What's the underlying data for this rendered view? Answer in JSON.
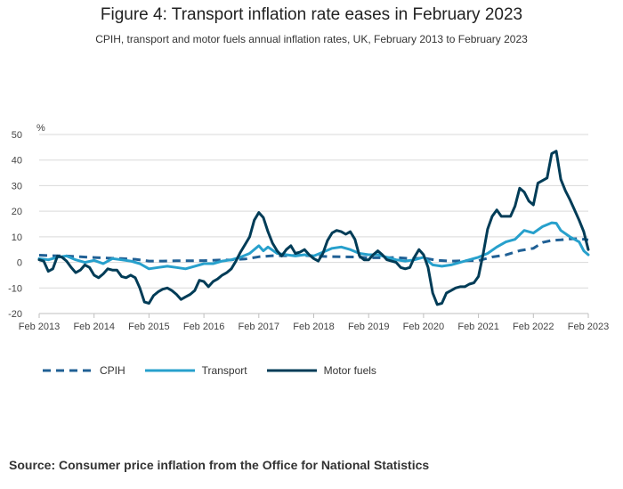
{
  "title": "Figure 4: Transport inflation rate eases in February 2023",
  "subtitle": "CPIH, transport and motor fuels annual inflation rates, UK, February 2013 to February 2023",
  "source": "Source: Consumer price inflation from the Office for National Statistics",
  "colors": {
    "cpih": "#206095",
    "transport": "#27a0cc",
    "motor_fuels": "#003c57",
    "grid": "#d9d9d9",
    "axis": "#bfbfbf"
  },
  "chart_data": {
    "type": "line",
    "ylabel": "%",
    "ylim": [
      -20,
      50
    ],
    "yticks": [
      50,
      40,
      30,
      20,
      10,
      0,
      -10,
      -20
    ],
    "xlim": [
      0,
      120
    ],
    "xticks": [
      {
        "x": 0,
        "label": "Feb 2013"
      },
      {
        "x": 12,
        "label": "Feb 2014"
      },
      {
        "x": 24,
        "label": "Feb 2015"
      },
      {
        "x": 36,
        "label": "Feb 2016"
      },
      {
        "x": 48,
        "label": "Feb 2017"
      },
      {
        "x": 60,
        "label": "Feb 2018"
      },
      {
        "x": 72,
        "label": "Feb 2019"
      },
      {
        "x": 84,
        "label": "Feb 2020"
      },
      {
        "x": 96,
        "label": "Feb 2021"
      },
      {
        "x": 108,
        "label": "Feb 2022"
      },
      {
        "x": 120,
        "label": "Feb 2023"
      }
    ],
    "series": [
      {
        "name": "CPIH",
        "key": "cpih",
        "style": "dashed",
        "values": [
          [
            0,
            2.8
          ],
          [
            3,
            2.6
          ],
          [
            6,
            2.5
          ],
          [
            9,
            2.2
          ],
          [
            12,
            1.9
          ],
          [
            15,
            1.7
          ],
          [
            18,
            1.5
          ],
          [
            21,
            1.2
          ],
          [
            24,
            0.5
          ],
          [
            27,
            0.5
          ],
          [
            30,
            0.6
          ],
          [
            33,
            0.6
          ],
          [
            36,
            0.7
          ],
          [
            39,
            0.9
          ],
          [
            42,
            1.0
          ],
          [
            45,
            1.3
          ],
          [
            48,
            2.2
          ],
          [
            51,
            2.6
          ],
          [
            54,
            2.6
          ],
          [
            57,
            2.8
          ],
          [
            60,
            2.5
          ],
          [
            63,
            2.3
          ],
          [
            66,
            2.2
          ],
          [
            69,
            2.1
          ],
          [
            72,
            1.8
          ],
          [
            75,
            1.8
          ],
          [
            78,
            1.9
          ],
          [
            81,
            1.5
          ],
          [
            84,
            1.7
          ],
          [
            87,
            0.8
          ],
          [
            90,
            0.5
          ],
          [
            93,
            0.6
          ],
          [
            96,
            0.7
          ],
          [
            99,
            2.1
          ],
          [
            102,
            2.9
          ],
          [
            105,
            4.6
          ],
          [
            108,
            5.5
          ],
          [
            110,
            7.8
          ],
          [
            112,
            8.6
          ],
          [
            114,
            8.8
          ],
          [
            116,
            9.2
          ],
          [
            118,
            9.3
          ],
          [
            120,
            8.8
          ]
        ]
      },
      {
        "name": "Transport",
        "key": "transport",
        "style": "solid",
        "values": [
          [
            0,
            1.5
          ],
          [
            2,
            1.0
          ],
          [
            4,
            2.0
          ],
          [
            6,
            2.5
          ],
          [
            8,
            1.0
          ],
          [
            10,
            0.0
          ],
          [
            12,
            0.8
          ],
          [
            14,
            -0.5
          ],
          [
            16,
            1.5
          ],
          [
            18,
            1.0
          ],
          [
            20,
            0.5
          ],
          [
            22,
            -0.5
          ],
          [
            24,
            -2.5
          ],
          [
            26,
            -2.0
          ],
          [
            28,
            -1.5
          ],
          [
            30,
            -2.0
          ],
          [
            32,
            -2.5
          ],
          [
            34,
            -1.5
          ],
          [
            36,
            -0.5
          ],
          [
            38,
            -0.5
          ],
          [
            40,
            0.5
          ],
          [
            42,
            1.0
          ],
          [
            44,
            2.0
          ],
          [
            46,
            3.5
          ],
          [
            48,
            6.5
          ],
          [
            49,
            4.5
          ],
          [
            50,
            6.0
          ],
          [
            52,
            3.5
          ],
          [
            54,
            3.0
          ],
          [
            56,
            2.5
          ],
          [
            58,
            3.0
          ],
          [
            60,
            2.5
          ],
          [
            62,
            4.0
          ],
          [
            64,
            5.5
          ],
          [
            66,
            6.0
          ],
          [
            68,
            5.0
          ],
          [
            70,
            3.5
          ],
          [
            72,
            3.0
          ],
          [
            74,
            3.0
          ],
          [
            76,
            2.0
          ],
          [
            78,
            1.0
          ],
          [
            80,
            0.5
          ],
          [
            82,
            1.0
          ],
          [
            84,
            2.0
          ],
          [
            86,
            -1.0
          ],
          [
            88,
            -1.5
          ],
          [
            90,
            -1.0
          ],
          [
            92,
            0.0
          ],
          [
            94,
            1.0
          ],
          [
            96,
            2.0
          ],
          [
            98,
            3.5
          ],
          [
            100,
            6.0
          ],
          [
            102,
            8.0
          ],
          [
            104,
            9.0
          ],
          [
            106,
            12.5
          ],
          [
            108,
            11.5
          ],
          [
            110,
            14.0
          ],
          [
            112,
            15.5
          ],
          [
            113,
            15.3
          ],
          [
            114,
            12.5
          ],
          [
            116,
            10.0
          ],
          [
            118,
            8.0
          ],
          [
            119,
            4.5
          ],
          [
            120,
            3.0
          ]
        ]
      },
      {
        "name": "Motor fuels",
        "key": "motor_fuels",
        "style": "solid",
        "values": [
          [
            0,
            1.0
          ],
          [
            1,
            0.5
          ],
          [
            2,
            -3.5
          ],
          [
            3,
            -2.5
          ],
          [
            4,
            2.5
          ],
          [
            5,
            2.0
          ],
          [
            6,
            0.5
          ],
          [
            7,
            -2.0
          ],
          [
            8,
            -4.0
          ],
          [
            9,
            -3.0
          ],
          [
            10,
            -1.0
          ],
          [
            11,
            -2.0
          ],
          [
            12,
            -5.0
          ],
          [
            13,
            -6.0
          ],
          [
            14,
            -4.5
          ],
          [
            15,
            -2.5
          ],
          [
            16,
            -3.0
          ],
          [
            17,
            -3.0
          ],
          [
            18,
            -5.5
          ],
          [
            19,
            -6.0
          ],
          [
            20,
            -5.0
          ],
          [
            21,
            -6.0
          ],
          [
            22,
            -10.0
          ],
          [
            23,
            -15.5
          ],
          [
            24,
            -16.0
          ],
          [
            25,
            -13.0
          ],
          [
            26,
            -11.5
          ],
          [
            27,
            -10.5
          ],
          [
            28,
            -10.0
          ],
          [
            29,
            -11.0
          ],
          [
            30,
            -12.5
          ],
          [
            31,
            -14.5
          ],
          [
            32,
            -13.5
          ],
          [
            33,
            -12.5
          ],
          [
            34,
            -11.0
          ],
          [
            35,
            -7.0
          ],
          [
            36,
            -7.5
          ],
          [
            37,
            -9.5
          ],
          [
            38,
            -7.5
          ],
          [
            39,
            -6.5
          ],
          [
            40,
            -5.0
          ],
          [
            41,
            -4.0
          ],
          [
            42,
            -2.5
          ],
          [
            43,
            0.5
          ],
          [
            44,
            4.0
          ],
          [
            45,
            7.0
          ],
          [
            46,
            10.0
          ],
          [
            47,
            16.5
          ],
          [
            48,
            19.5
          ],
          [
            49,
            17.5
          ],
          [
            50,
            12.0
          ],
          [
            51,
            7.5
          ],
          [
            52,
            4.5
          ],
          [
            53,
            2.5
          ],
          [
            54,
            5.0
          ],
          [
            55,
            6.5
          ],
          [
            56,
            3.5
          ],
          [
            57,
            4.0
          ],
          [
            58,
            5.0
          ],
          [
            59,
            3.0
          ],
          [
            60,
            1.5
          ],
          [
            61,
            0.5
          ],
          [
            62,
            3.5
          ],
          [
            63,
            8.5
          ],
          [
            64,
            11.5
          ],
          [
            65,
            12.5
          ],
          [
            66,
            12.0
          ],
          [
            67,
            11.0
          ],
          [
            68,
            12.0
          ],
          [
            69,
            9.0
          ],
          [
            70,
            2.5
          ],
          [
            71,
            1.0
          ],
          [
            72,
            1.0
          ],
          [
            73,
            3.0
          ],
          [
            74,
            4.5
          ],
          [
            75,
            3.0
          ],
          [
            76,
            1.0
          ],
          [
            77,
            0.5
          ],
          [
            78,
            0.0
          ],
          [
            79,
            -2.0
          ],
          [
            80,
            -2.5
          ],
          [
            81,
            -2.0
          ],
          [
            82,
            2.0
          ],
          [
            83,
            5.0
          ],
          [
            84,
            3.0
          ],
          [
            85,
            -2.0
          ],
          [
            86,
            -12.0
          ],
          [
            87,
            -16.5
          ],
          [
            88,
            -16.0
          ],
          [
            89,
            -12.0
          ],
          [
            90,
            -11.0
          ],
          [
            91,
            -10.0
          ],
          [
            92,
            -9.5
          ],
          [
            93,
            -9.5
          ],
          [
            94,
            -8.5
          ],
          [
            95,
            -8.0
          ],
          [
            96,
            -5.5
          ],
          [
            97,
            3.0
          ],
          [
            98,
            13.0
          ],
          [
            99,
            18.0
          ],
          [
            100,
            20.5
          ],
          [
            101,
            18.0
          ],
          [
            102,
            18.0
          ],
          [
            103,
            18.0
          ],
          [
            104,
            22.0
          ],
          [
            105,
            29.0
          ],
          [
            106,
            27.5
          ],
          [
            107,
            24.0
          ],
          [
            108,
            22.5
          ],
          [
            109,
            31.0
          ],
          [
            110,
            32.0
          ],
          [
            111,
            33.0
          ],
          [
            112,
            42.5
          ],
          [
            113,
            43.5
          ],
          [
            114,
            32.5
          ],
          [
            115,
            28.0
          ],
          [
            116,
            24.5
          ],
          [
            117,
            20.5
          ],
          [
            118,
            16.5
          ],
          [
            119,
            12.0
          ],
          [
            120,
            5.0
          ]
        ]
      }
    ],
    "legend": {
      "position": "bottom-left",
      "items": [
        "CPIH",
        "Transport",
        "Motor fuels"
      ]
    }
  }
}
